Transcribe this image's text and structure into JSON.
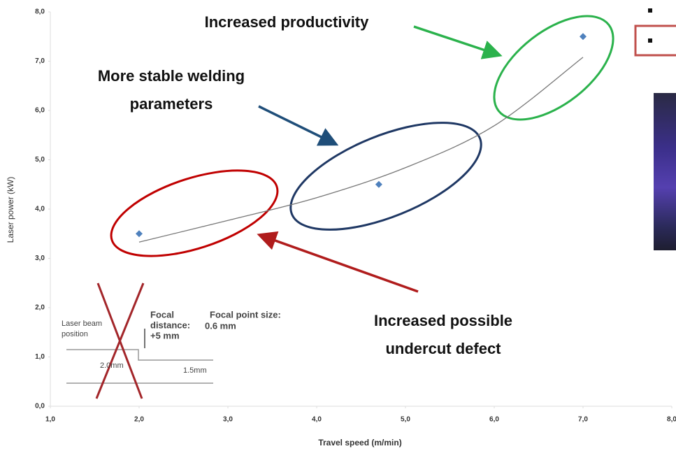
{
  "chart_data": {
    "type": "scatter",
    "x_label": "Travel speed (m/min)",
    "y_label": "Laser power (kW)",
    "x": [
      2.0,
      4.7,
      7.0
    ],
    "series": [
      {
        "color": "#4f81bd",
        "values": [
          3.5,
          4.5,
          7.5
        ]
      }
    ],
    "trendline": {
      "color": "#777777",
      "x": [
        2.0,
        3.0,
        4.0,
        5.0,
        6.0,
        7.0
      ],
      "values": [
        3.33,
        3.77,
        4.23,
        4.84,
        5.69,
        7.08
      ]
    },
    "xlim": [
      1.0,
      8.0
    ],
    "xticks": [
      {
        "value": 1,
        "label": "1,0"
      },
      {
        "value": 2,
        "label": "2,0"
      },
      {
        "value": 3,
        "label": "3,0"
      },
      {
        "value": 4,
        "label": "4,0"
      },
      {
        "value": 5,
        "label": "5,0"
      },
      {
        "value": 6,
        "label": "6,0"
      },
      {
        "value": 7,
        "label": "7,0"
      },
      {
        "value": 8,
        "label": "8,0"
      }
    ],
    "ylim": [
      0.0,
      8.0
    ],
    "yticks": [
      {
        "value": 0,
        "label": "0,0"
      },
      {
        "value": 1,
        "label": "1,0"
      },
      {
        "value": 2,
        "label": "2,0"
      },
      {
        "value": 3,
        "label": "3,0"
      },
      {
        "value": 4,
        "label": "4,0"
      },
      {
        "value": 5,
        "label": "5,0"
      },
      {
        "value": 6,
        "label": "6,0"
      },
      {
        "value": 7,
        "label": "7,0"
      },
      {
        "value": 8,
        "label": "8,0"
      }
    ],
    "annotations": {
      "productivity": "Increased productivity",
      "stability": [
        "More stable welding",
        "parameters"
      ],
      "undercut": [
        "Increased possible",
        "undercut defect"
      ]
    },
    "inset": {
      "beam": [
        "Laser beam",
        "position"
      ],
      "focal_distance": [
        "Focal",
        "distance:",
        "+5 mm"
      ],
      "focal_size": [
        "Focal point size:",
        "0.6 mm"
      ],
      "width_a": "2.0mm",
      "width_b": "1.5mm"
    }
  }
}
